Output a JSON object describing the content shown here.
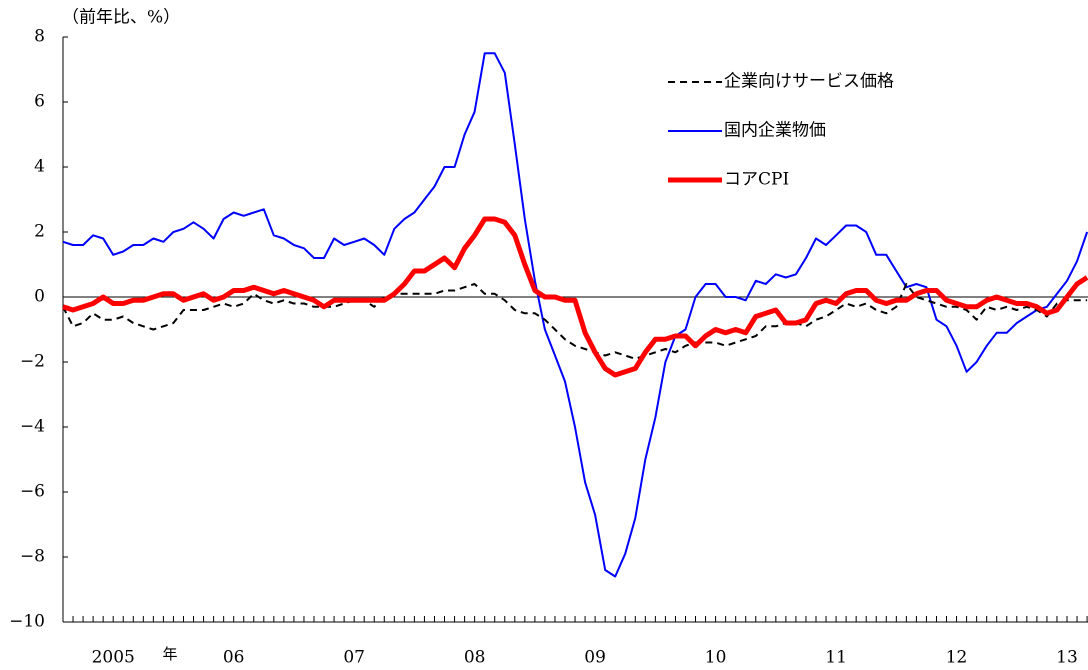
{
  "chart_data": {
    "type": "line",
    "title": "（前年比、%）",
    "x_unit": "年",
    "categories": [
      null,
      null,
      null,
      null,
      null,
      "2005",
      null,
      null,
      null,
      null,
      null,
      null,
      null,
      null,
      null,
      null,
      null,
      "06",
      null,
      null,
      null,
      null,
      null,
      null,
      null,
      null,
      null,
      null,
      null,
      "07",
      null,
      null,
      null,
      null,
      null,
      null,
      null,
      null,
      null,
      null,
      null,
      "08",
      null,
      null,
      null,
      null,
      null,
      null,
      null,
      null,
      null,
      null,
      null,
      "09",
      null,
      null,
      null,
      null,
      null,
      null,
      null,
      null,
      null,
      null,
      null,
      "10",
      null,
      null,
      null,
      null,
      null,
      null,
      null,
      null,
      null,
      null,
      null,
      "11",
      null,
      null,
      null,
      null,
      null,
      null,
      null,
      null,
      null,
      null,
      null,
      "12",
      null,
      null,
      null,
      null,
      null,
      null,
      null,
      null,
      null,
      null,
      "13",
      null,
      null
    ],
    "ylim": [
      -10,
      8
    ],
    "yticks": [
      {
        "value": -10,
        "label": "−10"
      },
      {
        "value": -8,
        "label": "−8"
      },
      {
        "value": -6,
        "label": "−6"
      },
      {
        "value": -4,
        "label": "−4"
      },
      {
        "value": -2,
        "label": "−2"
      },
      0,
      2,
      4,
      6,
      8
    ],
    "legend": "upper right",
    "series": [
      {
        "name": "企業向けサービス価格",
        "color": "#000000",
        "style": "dashed",
        "values": [
          -0.3,
          -0.9,
          -0.8,
          -0.5,
          -0.7,
          -0.7,
          -0.6,
          -0.8,
          -0.9,
          -1.0,
          -0.9,
          -0.8,
          -0.4,
          -0.4,
          -0.4,
          -0.3,
          -0.2,
          -0.3,
          -0.2,
          0.1,
          -0.1,
          -0.2,
          -0.1,
          -0.2,
          -0.2,
          -0.3,
          -0.3,
          -0.3,
          -0.2,
          -0.1,
          -0.1,
          -0.3,
          0.0,
          0.1,
          0.1,
          0.1,
          0.1,
          0.1,
          0.2,
          0.2,
          0.3,
          0.4,
          0.1,
          0.1,
          -0.1,
          -0.4,
          -0.5,
          -0.5,
          -0.7,
          -1.0,
          -1.3,
          -1.5,
          -1.6,
          -1.7,
          -1.8,
          -1.7,
          -1.8,
          -1.9,
          -1.8,
          -1.7,
          -1.6,
          -1.7,
          -1.5,
          -1.4,
          -1.4,
          -1.4,
          -1.5,
          -1.4,
          -1.3,
          -1.2,
          -0.9,
          -0.9,
          -0.8,
          -0.8,
          -0.9,
          -0.7,
          -0.6,
          -0.4,
          -0.2,
          -0.3,
          -0.2,
          -0.4,
          -0.5,
          -0.3,
          0.4,
          0.0,
          -0.1,
          -0.2,
          -0.3,
          -0.3,
          -0.4,
          -0.7,
          -0.3,
          -0.4,
          -0.3,
          -0.4,
          -0.3,
          -0.4,
          -0.6,
          -0.2,
          -0.1,
          -0.1,
          -0.1
        ]
      },
      {
        "name": "国内企業物価",
        "color": "#0000ff",
        "style": "thin",
        "values": [
          1.7,
          1.6,
          1.6,
          1.9,
          1.8,
          1.3,
          1.4,
          1.6,
          1.6,
          1.8,
          1.7,
          2.0,
          2.1,
          2.3,
          2.1,
          1.8,
          2.4,
          2.6,
          2.5,
          2.6,
          2.7,
          1.9,
          1.8,
          1.6,
          1.5,
          1.2,
          1.2,
          1.8,
          1.6,
          1.7,
          1.8,
          1.6,
          1.3,
          2.1,
          2.4,
          2.6,
          3.0,
          3.4,
          4.0,
          4.0,
          5.0,
          5.7,
          7.5,
          7.5,
          6.9,
          4.7,
          2.4,
          0.5,
          -1.0,
          -1.8,
          -2.6,
          -4.0,
          -5.7,
          -6.7,
          -8.4,
          -8.6,
          -7.9,
          -6.8,
          -5.0,
          -3.7,
          -2.0,
          -1.2,
          -1.0,
          0.0,
          0.4,
          0.4,
          0.0,
          0.0,
          -0.1,
          0.5,
          0.4,
          0.7,
          0.6,
          0.7,
          1.2,
          1.8,
          1.6,
          1.9,
          2.2,
          2.2,
          2.0,
          1.3,
          1.3,
          0.8,
          0.3,
          0.4,
          0.3,
          -0.7,
          -0.9,
          -1.5,
          -2.3,
          -2.0,
          -1.5,
          -1.1,
          -1.1,
          -0.8,
          -0.6,
          -0.4,
          -0.3,
          0.1,
          0.5,
          1.1,
          2.0
        ]
      },
      {
        "name": "コアCPI",
        "color": "#ff0000",
        "style": "thick",
        "values": [
          -0.3,
          -0.4,
          -0.3,
          -0.2,
          0.0,
          -0.2,
          -0.2,
          -0.1,
          -0.1,
          0.0,
          0.1,
          0.1,
          -0.1,
          0.0,
          0.1,
          -0.1,
          0.0,
          0.2,
          0.2,
          0.3,
          0.2,
          0.1,
          0.2,
          0.1,
          0.0,
          -0.1,
          -0.3,
          -0.1,
          -0.1,
          -0.1,
          -0.1,
          -0.1,
          -0.1,
          0.1,
          0.4,
          0.8,
          0.8,
          1.0,
          1.2,
          0.9,
          1.5,
          1.9,
          2.4,
          2.4,
          2.3,
          1.9,
          1.0,
          0.2,
          0.0,
          0.0,
          -0.1,
          -0.1,
          -1.1,
          -1.7,
          -2.2,
          -2.4,
          -2.3,
          -2.2,
          -1.7,
          -1.3,
          -1.3,
          -1.2,
          -1.2,
          -1.5,
          -1.2,
          -1.0,
          -1.1,
          -1.0,
          -1.1,
          -0.6,
          -0.5,
          -0.4,
          -0.8,
          -0.8,
          -0.7,
          -0.2,
          -0.1,
          -0.2,
          0.1,
          0.2,
          0.2,
          -0.1,
          -0.2,
          -0.1,
          -0.1,
          0.1,
          0.2,
          0.2,
          -0.1,
          -0.2,
          -0.3,
          -0.3,
          -0.1,
          0.0,
          -0.1,
          -0.2,
          -0.2,
          -0.3,
          -0.5,
          -0.4,
          0.0,
          0.4,
          0.6
        ]
      }
    ]
  }
}
